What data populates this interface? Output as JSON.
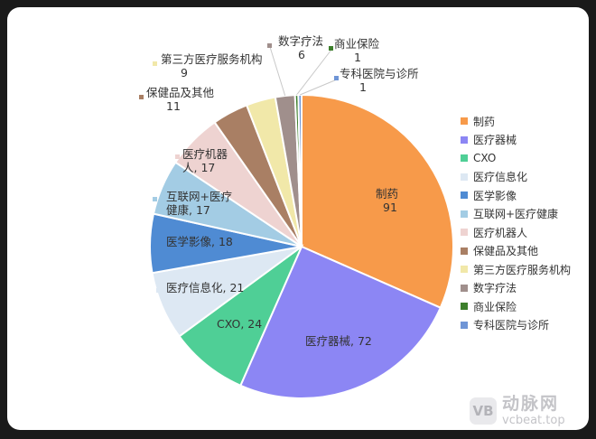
{
  "chart_data": {
    "type": "pie",
    "title": "",
    "legend_position": "right",
    "slices": [
      {
        "label": "制药",
        "value": 91,
        "color": "#f79a4a",
        "label_text": "制药\n91"
      },
      {
        "label": "医疗器械",
        "value": 72,
        "color": "#8c86f4",
        "label_text": "医疗器械, 72"
      },
      {
        "label": "CXO",
        "value": 24,
        "color": "#4fcf96",
        "label_text": "CXO, 24"
      },
      {
        "label": "医疗信息化",
        "value": 21,
        "color": "#dde8f3",
        "label_text": "医疗信息化, 21"
      },
      {
        "label": "医学影像",
        "value": 18,
        "color": "#4f8bd3",
        "label_text": "医学影像, 18"
      },
      {
        "label": "互联网+医疗健康",
        "value": 17,
        "color": "#a3cce4",
        "label_text": "互联网+医疗\n健康, 17"
      },
      {
        "label": "医疗机器人",
        "value": 17,
        "color": "#eed3d1",
        "label_text": "医疗机器\n人, 17"
      },
      {
        "label": "保健品及其他",
        "value": 11,
        "color": "#a97f64",
        "label_text": "保健品及其他\n11"
      },
      {
        "label": "第三方医疗服务机构",
        "value": 9,
        "color": "#f1e8a9",
        "label_text": "第三方医疗服务机构\n9"
      },
      {
        "label": "数字疗法",
        "value": 6,
        "color": "#a08f8c",
        "label_text": "数字疗法\n6"
      },
      {
        "label": "商业保险",
        "value": 1,
        "color": "#3d7f2c",
        "label_text": "商业保险\n1"
      },
      {
        "label": "专科医院与诊所",
        "value": 1,
        "color": "#6f95d6",
        "label_text": "专科医院与诊所\n1"
      }
    ]
  },
  "watermark": {
    "logo": "VB",
    "name": "动脉网",
    "url": "vcbeat.top"
  }
}
